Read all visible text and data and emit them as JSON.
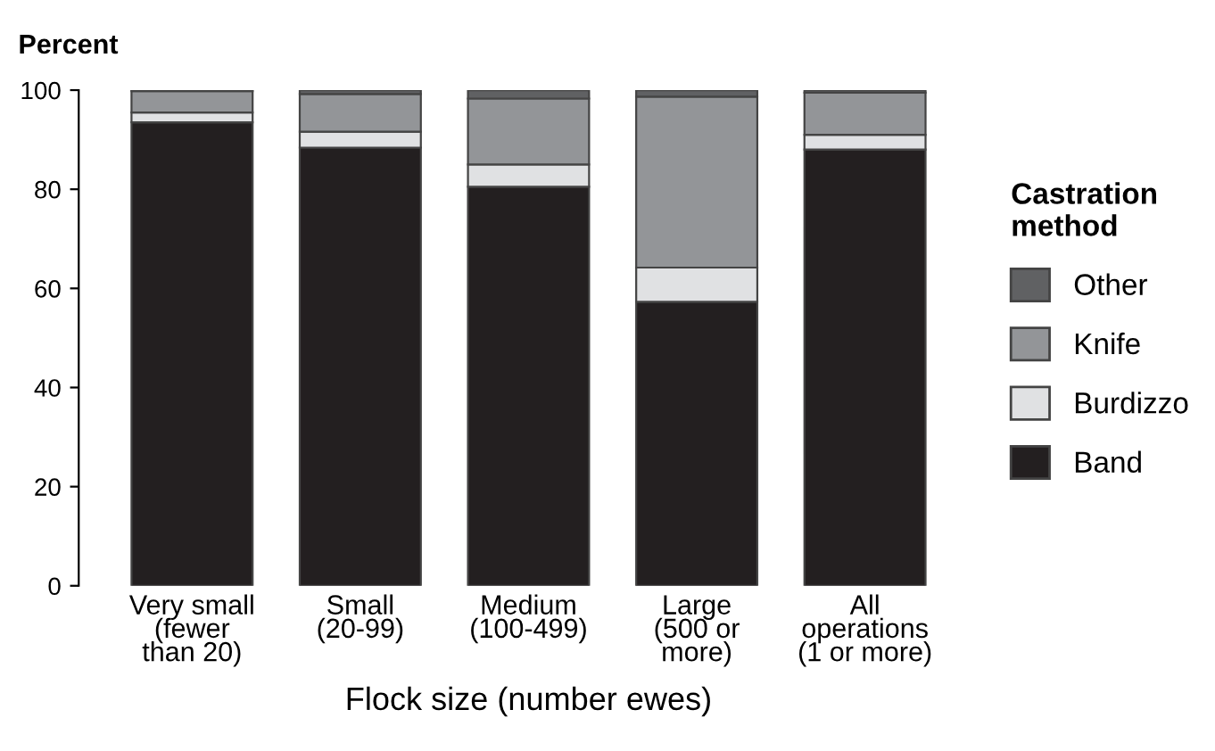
{
  "chart_data": {
    "type": "bar",
    "stacked": true,
    "ylabel": "Percent",
    "xlabel": "Flock size (number ewes)",
    "legend_title": "Castration\nmethod",
    "legend": "right",
    "categories": [
      "Very small\n(fewer\nthan 20)",
      "Small\n(20-99)",
      "Medium\n(100-499)",
      "Large\n(500 or\nmore)",
      "All\noperations\n(1 or more)"
    ],
    "series": [
      {
        "name": "Band",
        "color": "#231f20",
        "values": [
          93.5,
          88.4,
          80.5,
          57.3,
          88
        ]
      },
      {
        "name": "Burdizzo",
        "color": "#e0e1e3",
        "values": [
          2,
          3.2,
          4.5,
          6.9,
          3
        ]
      },
      {
        "name": "Knife",
        "color": "#939598",
        "values": [
          4.3,
          7.6,
          13.3,
          34.5,
          8.5
        ]
      },
      {
        "name": "Other",
        "color": "#606163",
        "values": [
          0.2,
          0.8,
          1.7,
          1.3,
          0.5
        ]
      }
    ],
    "ylim": [
      0,
      100
    ],
    "yticks": [
      0,
      20,
      40,
      60,
      80,
      100
    ],
    "grid": false
  }
}
